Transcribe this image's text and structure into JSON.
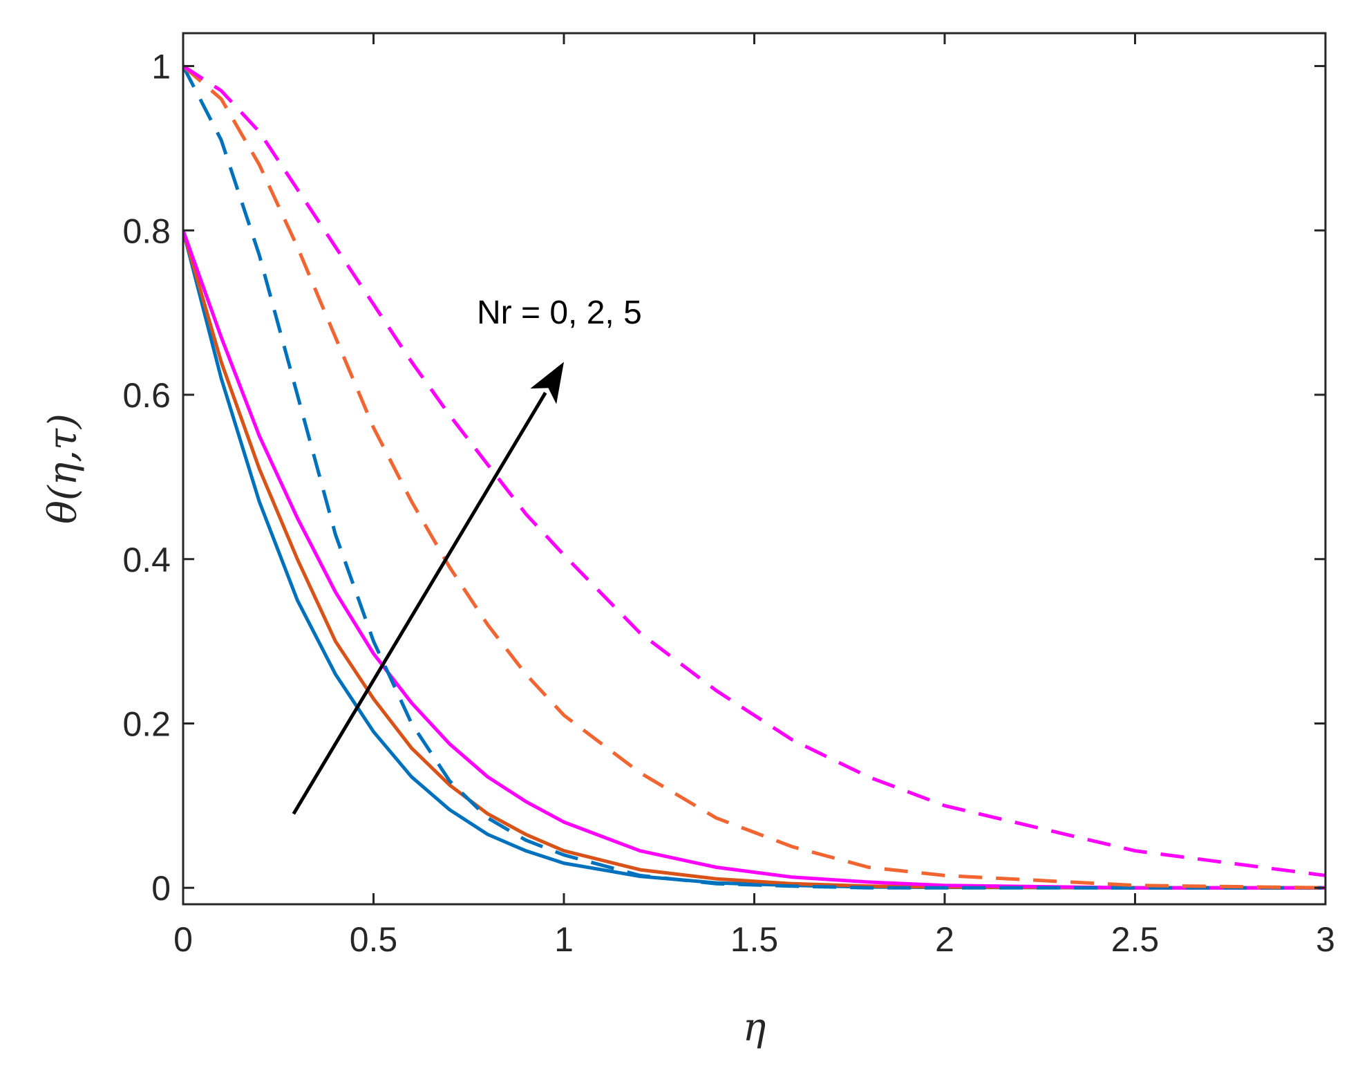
{
  "chart_data": {
    "type": "line",
    "xlabel": "η",
    "ylabel": "θ(η,τ)",
    "xlim": [
      0,
      3
    ],
    "ylim": [
      -0.02,
      1.04
    ],
    "xticks": [
      0,
      0.5,
      1,
      1.5,
      2,
      2.5,
      3
    ],
    "xtick_labels": [
      "0",
      "0.5",
      "1",
      "1.5",
      "2",
      "2.5",
      "3"
    ],
    "yticks": [
      0,
      0.2,
      0.4,
      0.6,
      0.8,
      1
    ],
    "ytick_labels": [
      "0",
      "0.2",
      "0.4",
      "0.6",
      "0.8",
      "1"
    ],
    "grid": false,
    "annotation": {
      "text": "Nr = 0, 2, 5",
      "arrow_from": [
        0.29,
        0.09
      ],
      "arrow_to": [
        1.0,
        0.64
      ]
    },
    "colors": {
      "blue": "#0072BD",
      "orange": "#D95319",
      "magenta": "#FF00FF",
      "orange_dashed": "#F26430"
    },
    "series": [
      {
        "style": "solid",
        "color": "#0072BD",
        "x": [
          0,
          0.1,
          0.2,
          0.3,
          0.4,
          0.5,
          0.6,
          0.7,
          0.8,
          0.9,
          1.0,
          1.2,
          1.4,
          1.6,
          1.8,
          2.0,
          2.5,
          3.0
        ],
        "y": [
          0.8,
          0.62,
          0.47,
          0.35,
          0.26,
          0.19,
          0.135,
          0.095,
          0.065,
          0.045,
          0.03,
          0.014,
          0.006,
          0.003,
          0.001,
          0.0005,
          0.0,
          0.0
        ]
      },
      {
        "style": "solid",
        "color": "#D95319",
        "x": [
          0,
          0.1,
          0.2,
          0.3,
          0.4,
          0.5,
          0.6,
          0.7,
          0.8,
          0.9,
          1.0,
          1.2,
          1.4,
          1.6,
          1.8,
          2.0,
          2.5,
          3.0
        ],
        "y": [
          0.8,
          0.64,
          0.51,
          0.4,
          0.3,
          0.23,
          0.17,
          0.125,
          0.09,
          0.065,
          0.045,
          0.022,
          0.011,
          0.005,
          0.002,
          0.001,
          0.0,
          0.0
        ]
      },
      {
        "style": "solid",
        "color": "#FF00FF",
        "x": [
          0,
          0.1,
          0.2,
          0.3,
          0.4,
          0.5,
          0.6,
          0.7,
          0.8,
          0.9,
          1.0,
          1.2,
          1.4,
          1.6,
          1.8,
          2.0,
          2.5,
          3.0
        ],
        "y": [
          0.8,
          0.67,
          0.55,
          0.45,
          0.36,
          0.285,
          0.225,
          0.175,
          0.135,
          0.105,
          0.08,
          0.045,
          0.025,
          0.013,
          0.007,
          0.003,
          0.0,
          0.0
        ]
      },
      {
        "style": "dashed",
        "color": "#0072BD",
        "x": [
          0,
          0.1,
          0.2,
          0.3,
          0.4,
          0.5,
          0.6,
          0.7,
          0.8,
          0.9,
          1.0,
          1.2,
          1.4,
          1.6,
          1.8,
          2.0,
          2.5,
          3.0
        ],
        "y": [
          1.0,
          0.91,
          0.77,
          0.6,
          0.43,
          0.3,
          0.2,
          0.13,
          0.085,
          0.058,
          0.04,
          0.015,
          0.005,
          0.002,
          0.0,
          0.0,
          0.0,
          0.0
        ]
      },
      {
        "style": "dashed",
        "color": "#F26430",
        "x": [
          0,
          0.1,
          0.2,
          0.3,
          0.4,
          0.5,
          0.6,
          0.7,
          0.8,
          0.9,
          1.0,
          1.2,
          1.4,
          1.6,
          1.8,
          2.0,
          2.5,
          3.0
        ],
        "y": [
          1.0,
          0.96,
          0.88,
          0.78,
          0.67,
          0.56,
          0.47,
          0.39,
          0.32,
          0.26,
          0.21,
          0.14,
          0.085,
          0.05,
          0.025,
          0.015,
          0.003,
          0.0
        ]
      },
      {
        "style": "dashed",
        "color": "#FF00FF",
        "x": [
          0,
          0.1,
          0.2,
          0.3,
          0.4,
          0.5,
          0.6,
          0.7,
          0.8,
          0.9,
          1.0,
          1.2,
          1.4,
          1.6,
          1.8,
          2.0,
          2.5,
          3.0
        ],
        "y": [
          1.0,
          0.97,
          0.92,
          0.85,
          0.78,
          0.71,
          0.64,
          0.575,
          0.515,
          0.455,
          0.405,
          0.31,
          0.24,
          0.18,
          0.135,
          0.1,
          0.045,
          0.015
        ]
      }
    ]
  }
}
